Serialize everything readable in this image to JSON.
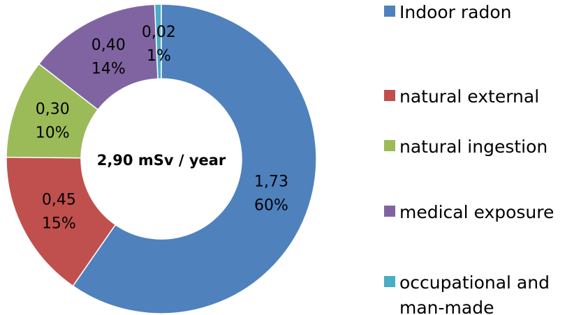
{
  "chart_data": {
    "type": "donut",
    "center_label": "2,90 mSv / year",
    "categories": [
      "Indoor radon",
      "natural external",
      "natural ingestion",
      "medical exposure",
      "occupational and man-made"
    ],
    "values": [
      1.73,
      0.45,
      0.3,
      0.4,
      0.02
    ],
    "value_labels": [
      "1,73",
      "0,45",
      "0,30",
      "0,40",
      "0,02"
    ],
    "percent_labels": [
      "60%",
      "15%",
      "10%",
      "14%",
      "1%"
    ],
    "colors": [
      "#4f81bd",
      "#c0504d",
      "#9bbb59",
      "#8064a2",
      "#4bacc6"
    ],
    "legend": "right"
  }
}
